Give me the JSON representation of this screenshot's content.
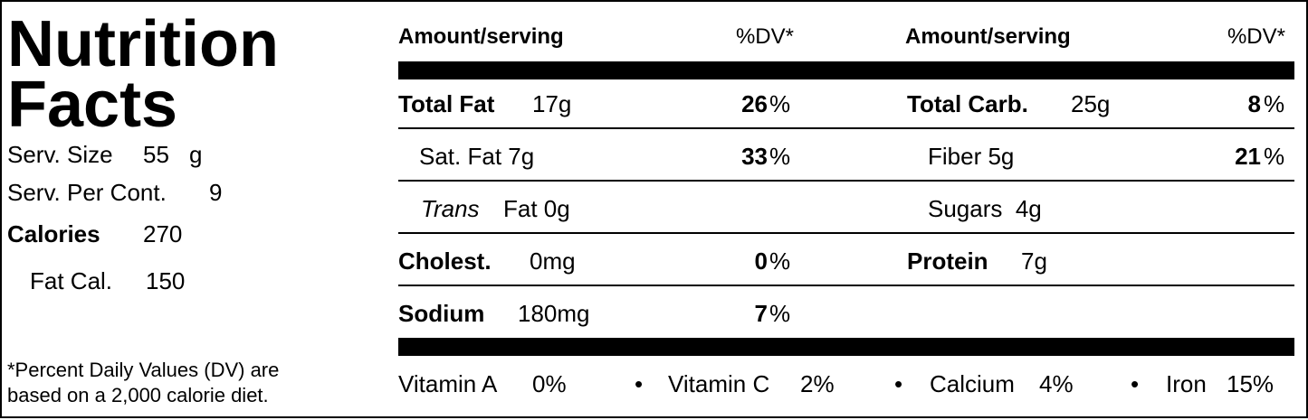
{
  "label": {
    "title": [
      "Nutrition",
      "Facts"
    ],
    "serving_size": {
      "label": "Serv. Size",
      "value": "55",
      "unit": "g"
    },
    "servings_per_container": {
      "label": "Serv. Per Cont.",
      "value": "9"
    },
    "calories": {
      "label": "Calories",
      "value": "270"
    },
    "fat_calories": {
      "label": "Fat Cal.",
      "value": "150"
    },
    "footnote": [
      "*Percent Daily Values (DV) are",
      "based on a 2,000 calorie diet."
    ],
    "header": {
      "amount": "Amount/serving",
      "dv": "%DV*"
    },
    "percent": "%",
    "left_rows": [
      {
        "name": "Total Fat",
        "amount": "17g",
        "dv": "26"
      },
      {
        "name": "Sat. Fat 7g",
        "dv": "33"
      },
      {
        "name_italic": "Trans",
        "name": "Fat 0g"
      },
      {
        "name": "Cholest.",
        "amount": "0mg",
        "dv": "0"
      },
      {
        "name": "Sodium",
        "amount": "180mg",
        "dv": "7"
      }
    ],
    "right_rows": [
      {
        "name": "Total Carb.",
        "amount": "25g",
        "dv": "8"
      },
      {
        "name": "Fiber 5g",
        "dv": "21"
      },
      {
        "name": "Sugars  4g"
      },
      {
        "name": "Protein",
        "amount": "7g"
      }
    ],
    "vitamins": [
      {
        "name": "Vitamin A",
        "value": "0%"
      },
      {
        "name": "Vitamin C",
        "value": "2%"
      },
      {
        "name": "Calcium",
        "value": "4%"
      },
      {
        "name": "Iron",
        "value": "15%"
      }
    ],
    "bullet": "•"
  }
}
